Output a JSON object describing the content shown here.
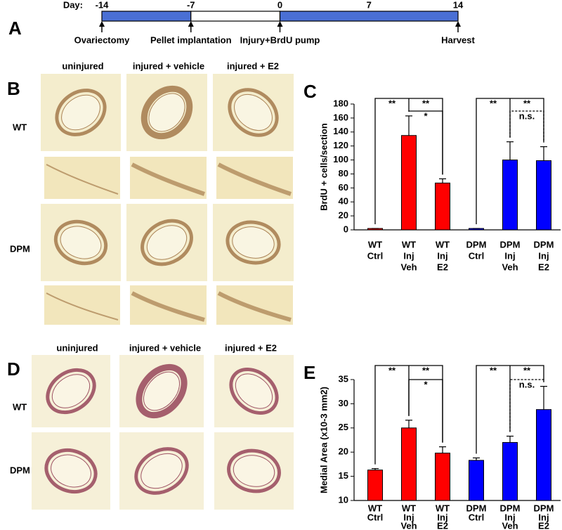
{
  "timeline": {
    "label": "Day:",
    "days": [
      -14,
      -7,
      0,
      7,
      14
    ],
    "segments": [
      {
        "from": -14,
        "to": -7,
        "color": "#4a6fd4"
      },
      {
        "from": -7,
        "to": 0,
        "color": "#ffffff"
      },
      {
        "from": 0,
        "to": 14,
        "color": "#4a6fd4"
      }
    ],
    "events": [
      {
        "day": -14,
        "label": "Ovariectomy"
      },
      {
        "day": -7,
        "label": "Pellet implantation"
      },
      {
        "day": 0,
        "label": "Injury+BrdU pump"
      },
      {
        "day": 14,
        "label": "Harvest"
      }
    ]
  },
  "panel_labels": [
    "A",
    "B",
    "C",
    "D",
    "E"
  ],
  "micrographs": [
    {
      "columns": [
        "uninjured",
        "injured + vehicle",
        "injured + E2"
      ],
      "rows": [
        "WT",
        "DPM"
      ]
    },
    {
      "columns": [
        "uninjured",
        "injured + vehicle",
        "injured + E2"
      ],
      "rows": [
        "WT",
        "DPM"
      ]
    }
  ],
  "chart_data": [
    {
      "type": "bar",
      "ylabel": "BrdU + cells/section",
      "categories": [
        [
          "WT",
          "Ctrl"
        ],
        [
          "WT",
          "Inj",
          "Veh"
        ],
        [
          "WT",
          "Inj",
          "E2"
        ],
        [
          "DPM",
          "Ctrl"
        ],
        [
          "DPM",
          "Inj",
          "Veh"
        ],
        [
          "DPM",
          "Inj",
          "E2"
        ]
      ],
      "values": [
        2,
        135,
        67,
        2,
        100,
        99
      ],
      "errors": [
        0,
        28,
        6,
        0,
        26,
        20
      ],
      "colors": [
        "#ff0000",
        "#ff0000",
        "#ff0000",
        "#0000ff",
        "#0000ff",
        "#0000ff"
      ],
      "ylim": [
        0,
        180
      ],
      "yticks": [
        0,
        20,
        40,
        60,
        80,
        100,
        120,
        140,
        160,
        180
      ],
      "annotations": [
        "**",
        "**",
        "*",
        "**",
        "**",
        "n.s."
      ]
    },
    {
      "type": "bar",
      "ylabel": "Medial Area (x10-3 mm2)",
      "categories": [
        [
          "WT",
          "Ctrl"
        ],
        [
          "WT",
          "Inj",
          "Veh"
        ],
        [
          "WT",
          "Inj",
          "E2"
        ],
        [
          "DPM",
          "Ctrl"
        ],
        [
          "DPM",
          "Inj",
          "Veh"
        ],
        [
          "DPM",
          "Inj",
          "E2"
        ]
      ],
      "values": [
        16.3,
        25,
        19.8,
        18.3,
        22,
        28.8
      ],
      "errors": [
        0.3,
        1.6,
        1.3,
        0.5,
        1.3,
        4.8
      ],
      "colors": [
        "#ff0000",
        "#ff0000",
        "#ff0000",
        "#0000ff",
        "#0000ff",
        "#0000ff"
      ],
      "ylim": [
        10,
        35
      ],
      "yticks": [
        10,
        15,
        20,
        25,
        30,
        35
      ],
      "annotations": [
        "**",
        "**",
        "*",
        "**",
        "**",
        "n.s."
      ]
    }
  ]
}
